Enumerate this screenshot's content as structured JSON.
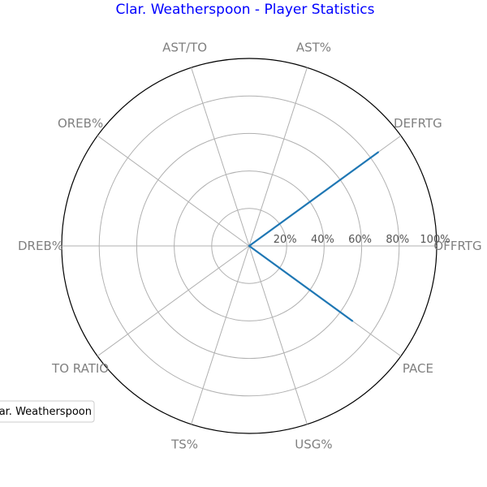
{
  "chart_data": {
    "type": "radar",
    "title": "Clar. Weatherspoon - Player Statistics",
    "title_color": "#0000ff",
    "axes": [
      "OFFRTG",
      "DEFRTG",
      "AST%",
      "AST/TO",
      "OREB%",
      "DREB%",
      "TO RATIO",
      "TS%",
      "USG%",
      "PACE"
    ],
    "radial_ticks": [
      "20%",
      "40%",
      "60%",
      "80%",
      "100%"
    ],
    "radial_tick_values": [
      20,
      40,
      60,
      80,
      100
    ],
    "rmax": 100,
    "grid": true,
    "legend_position": "lower-left",
    "series": [
      {
        "name": "Clar. Weatherspoon",
        "color": "#1f77b4",
        "values": [
          0,
          85,
          0,
          0,
          0,
          0,
          0,
          0,
          0,
          68
        ]
      }
    ]
  }
}
